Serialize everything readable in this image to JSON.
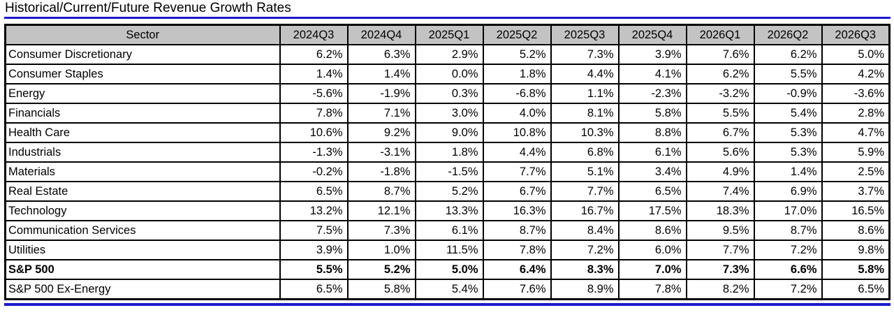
{
  "title": "Historical/Current/Future Revenue Growth Rates",
  "colors": {
    "accent_blue": "#1a1ac8",
    "header_bg": "#c3c3c3",
    "border": "#000000"
  },
  "chart_data": {
    "type": "table",
    "title": "Historical/Current/Future Revenue Growth Rates",
    "columns": [
      "Sector",
      "2024Q3",
      "2024Q4",
      "2025Q1",
      "2025Q2",
      "2025Q3",
      "2025Q4",
      "2026Q1",
      "2026Q2",
      "2026Q3"
    ],
    "rows": [
      {
        "sector": "Consumer Discretionary",
        "bold": false,
        "values": [
          "6.2%",
          "6.3%",
          "2.9%",
          "5.2%",
          "7.3%",
          "3.9%",
          "7.6%",
          "6.2%",
          "5.0%"
        ]
      },
      {
        "sector": "Consumer Staples",
        "bold": false,
        "values": [
          "1.4%",
          "1.4%",
          "0.0%",
          "1.8%",
          "4.4%",
          "4.1%",
          "6.2%",
          "5.5%",
          "4.2%"
        ]
      },
      {
        "sector": "Energy",
        "bold": false,
        "values": [
          "-5.6%",
          "-1.9%",
          "0.3%",
          "-6.8%",
          "1.1%",
          "-2.3%",
          "-3.2%",
          "-0.9%",
          "-3.6%"
        ]
      },
      {
        "sector": "Financials",
        "bold": false,
        "values": [
          "7.8%",
          "7.1%",
          "3.0%",
          "4.0%",
          "8.1%",
          "5.8%",
          "5.5%",
          "5.4%",
          "2.8%"
        ]
      },
      {
        "sector": "Health Care",
        "bold": false,
        "values": [
          "10.6%",
          "9.2%",
          "9.0%",
          "10.8%",
          "10.3%",
          "8.8%",
          "6.7%",
          "5.3%",
          "4.7%"
        ]
      },
      {
        "sector": "Industrials",
        "bold": false,
        "values": [
          "-1.3%",
          "-3.1%",
          "1.8%",
          "4.4%",
          "6.8%",
          "6.1%",
          "5.6%",
          "5.3%",
          "5.9%"
        ]
      },
      {
        "sector": "Materials",
        "bold": false,
        "values": [
          "-0.2%",
          "-1.8%",
          "-1.5%",
          "7.7%",
          "5.1%",
          "3.4%",
          "4.9%",
          "1.4%",
          "2.5%"
        ]
      },
      {
        "sector": "Real Estate",
        "bold": false,
        "values": [
          "6.5%",
          "8.7%",
          "5.2%",
          "6.7%",
          "7.7%",
          "6.5%",
          "7.4%",
          "6.9%",
          "3.7%"
        ]
      },
      {
        "sector": "Technology",
        "bold": false,
        "values": [
          "13.2%",
          "12.1%",
          "13.3%",
          "16.3%",
          "16.7%",
          "17.5%",
          "18.3%",
          "17.0%",
          "16.5%"
        ]
      },
      {
        "sector": "Communication Services",
        "bold": false,
        "values": [
          "7.5%",
          "7.3%",
          "6.1%",
          "8.7%",
          "8.4%",
          "8.6%",
          "9.5%",
          "8.7%",
          "8.6%"
        ]
      },
      {
        "sector": "Utilities",
        "bold": false,
        "values": [
          "3.9%",
          "1.0%",
          "11.5%",
          "7.8%",
          "7.2%",
          "6.0%",
          "7.7%",
          "7.2%",
          "9.8%"
        ]
      },
      {
        "sector": "S&P 500",
        "bold": true,
        "values": [
          "5.5%",
          "5.2%",
          "5.0%",
          "6.4%",
          "8.3%",
          "7.0%",
          "7.3%",
          "6.6%",
          "5.8%"
        ]
      },
      {
        "sector": "S&P 500 Ex-Energy",
        "bold": false,
        "values": [
          "6.5%",
          "5.8%",
          "5.4%",
          "7.6%",
          "8.9%",
          "7.8%",
          "8.2%",
          "7.2%",
          "6.5%"
        ]
      }
    ],
    "layout": {
      "header_fill": "gray",
      "gridlines": "all",
      "negative_format": "minus-sign"
    }
  }
}
